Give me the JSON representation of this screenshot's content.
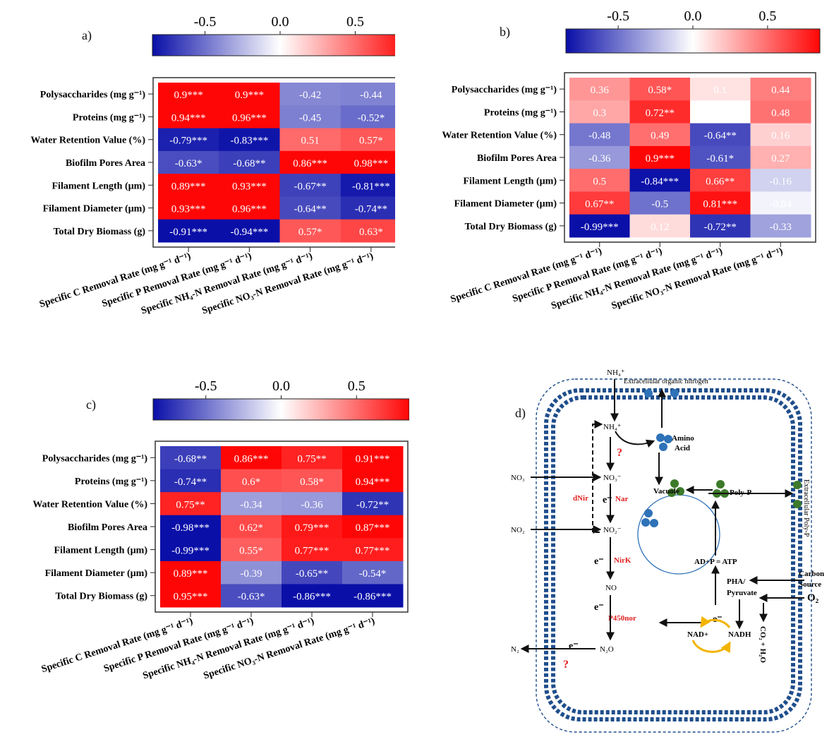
{
  "colors": {
    "neg": "#0a0fa8",
    "mid": "#ffffff",
    "pos": "#ff0606",
    "frame": "#333333",
    "pathway": "#1f4e8c",
    "enzyme": "#e02020",
    "cell_blue": "#2e72b8",
    "cell_green": "#3d7a2a",
    "nad_arrow": "#f2b400"
  },
  "colorbar": {
    "ticks": [
      "-0.5",
      "0.0",
      "0.5"
    ],
    "tick_values": [
      -0.5,
      0.0,
      0.5
    ],
    "range": [
      -0.85,
      0.85
    ]
  },
  "panels": {
    "a": {
      "label": "a)"
    },
    "b": {
      "label": "b)"
    },
    "c": {
      "label": "c)"
    },
    "d": {
      "label": "d)"
    }
  },
  "row_labels": [
    "Polysaccharides (mg g⁻¹)",
    "Proteins (mg g⁻¹)",
    "Water Retention Value (%)",
    "Biofilm Pores Area",
    "Filament Length (µm)",
    "Filament Diameter (µm)",
    "Total Dry Biomass (g)"
  ],
  "col_labels": [
    "Specific C Removal Rate (mg g⁻¹ d⁻¹)",
    "Specific P Removal Rate (mg g⁻¹ d⁻¹)",
    "Specific NH₄-N Removal Rate (mg g⁻¹ d⁻¹)",
    "Specific NO₃-N Removal Rate (mg g⁻¹ d⁻¹)"
  ],
  "chart_data": [
    {
      "type": "heatmap",
      "panel": "a)",
      "rows": [
        "Polysaccharides (mg g⁻¹)",
        "Proteins (mg g⁻¹)",
        "Water Retention Value (%)",
        "Biofilm Pores Area",
        "Filament Length (µm)",
        "Filament Diameter (µm)",
        "Total Dry Biomass (g)"
      ],
      "columns": [
        "Specific C Removal Rate (mg g⁻¹ d⁻¹)",
        "Specific P Removal Rate (mg g⁻¹ d⁻¹)",
        "Specific NH₄-N Removal Rate (mg g⁻¹ d⁻¹)",
        "Specific NO₃-N Removal Rate (mg g⁻¹ d⁻¹)"
      ],
      "values": [
        [
          0.9,
          0.9,
          -0.42,
          -0.44
        ],
        [
          0.94,
          0.96,
          -0.45,
          -0.52
        ],
        [
          -0.79,
          -0.83,
          0.51,
          0.57
        ],
        [
          -0.63,
          -0.68,
          0.86,
          0.98
        ],
        [
          0.89,
          0.93,
          -0.67,
          -0.81
        ],
        [
          0.93,
          0.96,
          -0.64,
          -0.74
        ],
        [
          -0.91,
          -0.94,
          0.57,
          0.63
        ]
      ],
      "labels": [
        [
          "0.9***",
          "0.9***",
          "-0.42",
          "-0.44"
        ],
        [
          "0.94***",
          "0.96***",
          "-0.45",
          "-0.52*"
        ],
        [
          "-0.79***",
          "-0.83***",
          "0.51",
          "0.57*"
        ],
        [
          "-0.63*",
          "-0.68**",
          "0.86***",
          "0.98***"
        ],
        [
          "0.89***",
          "0.93***",
          "-0.67**",
          "-0.81***"
        ],
        [
          "0.93***",
          "0.96***",
          "-0.64**",
          "-0.74**"
        ],
        [
          "-0.91***",
          "-0.94***",
          "0.57*",
          "0.63*"
        ]
      ],
      "color_range": [
        -0.85,
        0.85
      ]
    },
    {
      "type": "heatmap",
      "panel": "b)",
      "rows": [
        "Polysaccharides (mg g⁻¹)",
        "Proteins (mg g⁻¹)",
        "Water Retention Value (%)",
        "Biofilm Pores Area",
        "Filament Length (µm)",
        "Filament Diameter (µm)",
        "Total Dry Biomass (g)"
      ],
      "columns": [
        "Specific C Removal Rate (mg g⁻¹ d⁻¹)",
        "Specific P Removal Rate (mg g⁻¹ d⁻¹)",
        "Specific NH₄-N Removal Rate (mg g⁻¹ d⁻¹)",
        "Specific NO₃-N Removal Rate (mg g⁻¹ d⁻¹)"
      ],
      "values": [
        [
          0.36,
          0.58,
          0.1,
          0.44
        ],
        [
          0.3,
          0.72,
          0,
          0.48
        ],
        [
          -0.48,
          0.49,
          -0.64,
          0.16
        ],
        [
          -0.36,
          0.9,
          -0.61,
          0.27
        ],
        [
          0.5,
          -0.84,
          0.66,
          -0.16
        ],
        [
          0.67,
          -0.5,
          0.81,
          -0.04
        ],
        [
          -0.99,
          0.12,
          -0.72,
          -0.33
        ]
      ],
      "labels": [
        [
          "0.36",
          "0.58*",
          "0.1",
          "0.44"
        ],
        [
          "0.3",
          "0.72**",
          "",
          "0.48"
        ],
        [
          "-0.48",
          "0.49",
          "-0.64**",
          "0.16"
        ],
        [
          "-0.36",
          "0.9***",
          "-0.61*",
          "0.27"
        ],
        [
          "0.5",
          "-0.84***",
          "0.66**",
          "-0.16"
        ],
        [
          "0.67**",
          "-0.5",
          "0.81***",
          "-0.04"
        ],
        [
          "-0.99***",
          "0.12",
          "-0.72**",
          "-0.33"
        ]
      ],
      "color_range": [
        -0.85,
        0.85
      ]
    },
    {
      "type": "heatmap",
      "panel": "c)",
      "rows": [
        "Polysaccharides (mg g⁻¹)",
        "Proteins (mg g⁻¹)",
        "Water Retention Value (%)",
        "Biofilm Pores Area",
        "Filament Length (µm)",
        "Filament Diameter (µm)",
        "Total Dry Biomass (g)"
      ],
      "columns": [
        "Specific C Removal Rate (mg g⁻¹ d⁻¹)",
        "Specific P Removal Rate (mg g⁻¹ d⁻¹)",
        "Specific NH₄-N Removal Rate (mg g⁻¹ d⁻¹)",
        "Specific NO₃-N Removal Rate (mg g⁻¹ d⁻¹)"
      ],
      "values": [
        [
          -0.68,
          0.86,
          0.75,
          0.91
        ],
        [
          -0.74,
          0.6,
          0.58,
          0.94
        ],
        [
          0.75,
          -0.34,
          -0.36,
          -0.72
        ],
        [
          -0.98,
          0.62,
          0.79,
          0.87
        ],
        [
          -0.99,
          0.55,
          0.77,
          0.77
        ],
        [
          0.89,
          -0.39,
          -0.65,
          -0.54
        ],
        [
          0.95,
          -0.63,
          -0.86,
          -0.86
        ]
      ],
      "labels": [
        [
          "-0.68**",
          "0.86***",
          "0.75**",
          "0.91***"
        ],
        [
          "-0.74**",
          "0.6*",
          "0.58*",
          "0.94***"
        ],
        [
          "0.75**",
          "-0.34",
          "-0.36",
          "-0.72**"
        ],
        [
          "-0.98***",
          "0.62*",
          "0.79***",
          "0.87***"
        ],
        [
          "-0.99***",
          "0.55*",
          "0.77***",
          "0.77***"
        ],
        [
          "0.89***",
          "-0.39",
          "-0.65**",
          "-0.54*"
        ],
        [
          "0.95***",
          "-0.63*",
          "-0.86***",
          "-0.86***"
        ]
      ],
      "color_range": [
        -0.85,
        0.85
      ]
    }
  ],
  "diagram": {
    "extracellular_organic_nitrogen": "Extracellular organic nitrogen",
    "nh4_in": "NH₄⁺",
    "nh4_inner": "NH₄⁺",
    "amino_acid_1": "Amino",
    "amino_acid_2": "Acid",
    "q1": "?",
    "q2": "?",
    "no3_in": "NO₃",
    "no3_inner": "NO₃⁻",
    "dnir": "dNir",
    "nar": "Nar",
    "no2_in": "NO₂",
    "no2_inner": "NO₂⁻",
    "electron": "e⁻",
    "nirk": "NirK",
    "no": "NO",
    "p450nor": "P450nor",
    "n2o": "N₂O",
    "n2": "N₂",
    "vacuole": "Vacuole",
    "polyp": "Poly-P",
    "extracellular_polyp": "Extracellular Poly-P",
    "atp": "AD+P = ATP",
    "carbon_source_1": "Carbon",
    "carbon_source_2": "Source",
    "pha_1": "PHA/",
    "pha_2": "Pyruvate",
    "o2": "O₂",
    "nad": "NAD+",
    "nadh": "NADH",
    "co2": "CO₂ + H₂O"
  }
}
